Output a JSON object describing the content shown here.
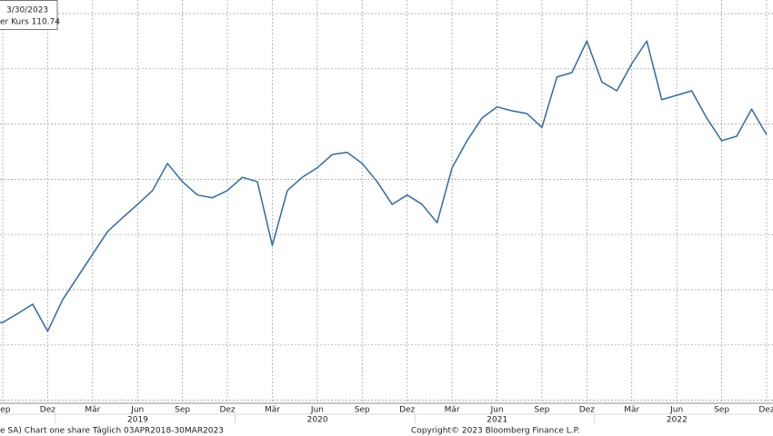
{
  "chart_data": {
    "type": "line",
    "categories": [
      null,
      "Sep",
      null,
      null,
      "Dez",
      null,
      null,
      "Mär",
      null,
      null,
      "Jun",
      null,
      null,
      "Sep",
      null,
      null,
      "Dez",
      null,
      null,
      "Mär",
      null,
      null,
      "Jun",
      null,
      null,
      "Sep",
      null,
      null,
      "Dez",
      null,
      null,
      "Mär",
      null,
      null,
      "Jun",
      null,
      null,
      "Sep",
      null,
      null,
      "Dez",
      null,
      null,
      "Mär",
      null,
      null,
      "Jun",
      null,
      null,
      "Sep",
      null,
      null,
      "Dez"
    ],
    "years": [
      "2019",
      "2020",
      "2021",
      "2022"
    ],
    "series": [
      {
        "color": "#2e6ca4",
        "values": [
          76.8,
          76.8,
          78.4,
          80.1,
          75.2,
          80.9,
          85.0,
          89.1,
          93.2,
          95.7,
          98.1,
          100.6,
          105.5,
          102.2,
          99.8,
          99.3,
          100.6,
          103.0,
          102.2,
          90.7,
          100.6,
          103.0,
          104.7,
          107.1,
          107.5,
          105.5,
          102.2,
          98.1,
          99.8,
          98.1,
          94.8,
          104.7,
          109.6,
          113.7,
          115.7,
          115.0,
          114.5,
          112.0,
          121.1,
          121.9,
          127.6,
          120.2,
          118.6,
          123.5,
          127.6,
          117.0,
          117.8,
          118.6,
          113.7,
          109.6,
          110.4,
          115.3,
          110.7
        ]
      }
    ],
    "ylim": [
      62.2,
      135.0
    ],
    "legend_date": "3/30/2023",
    "legend_text": "er Kurs 110.74",
    "footer_left": "e SA) Chart one share  Täglich 03APR2018-30MAR2023",
    "footer_right": "Copyright© 2023 Bloomberg Finance L.P."
  }
}
